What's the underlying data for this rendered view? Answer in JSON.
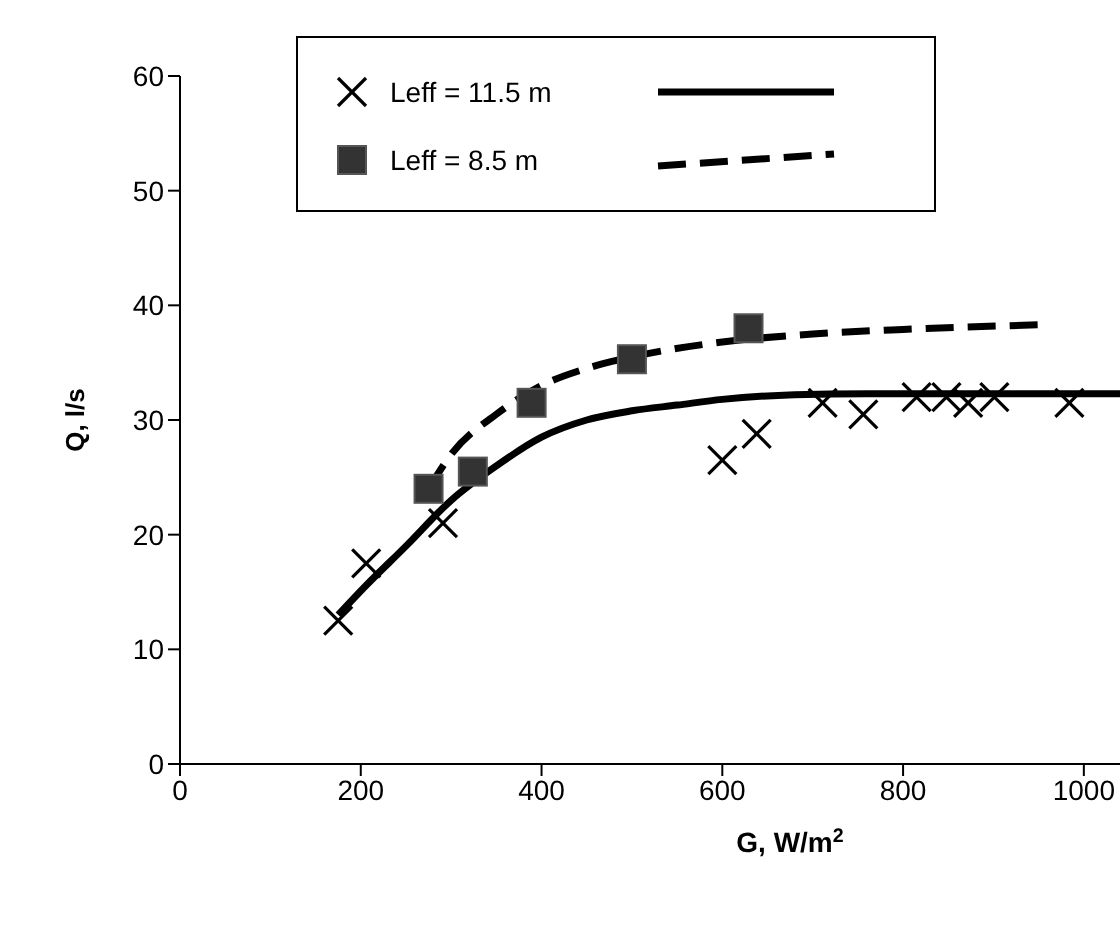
{
  "chart_data": {
    "type": "scatter",
    "xlabel": "G, W/m$^{2}$",
    "ylabel": "Q, l/s",
    "xlim": [
      0,
      1040
    ],
    "xticks": [
      0,
      200,
      400,
      600,
      800,
      1000
    ],
    "ylim": [
      0,
      60
    ],
    "yticks": [
      0,
      10,
      20,
      30,
      40,
      50,
      60
    ],
    "grid": false,
    "legend": "top",
    "series": [
      {
        "name": "Leff = 11.5 m",
        "type": "scatter",
        "marker": "cross",
        "color": "#000000",
        "x": [
          175,
          206,
          291,
          600,
          638,
          711,
          756,
          815,
          848,
          872,
          901,
          984
        ],
        "values": [
          12.5,
          17.5,
          21,
          26.5,
          28.8,
          31.5,
          30.5,
          32,
          32,
          31.5,
          32,
          31.5
        ]
      },
      {
        "type": "line",
        "line_style": "solid",
        "color": "#000000",
        "x": [
          175,
          205,
          250,
          300,
          350,
          400,
          450,
          500,
          550,
          600,
          680,
          760,
          860,
          1040
        ],
        "values": [
          13,
          15.5,
          19,
          23,
          26,
          28.5,
          30,
          30.8,
          31.3,
          31.8,
          32.2,
          32.3,
          32.3,
          32.3
        ]
      },
      {
        "name": "Leff = 8.5 m",
        "type": "scatter",
        "marker": "square",
        "color": "#333333",
        "x": [
          275,
          324,
          389,
          500,
          629
        ],
        "values": [
          24,
          25.5,
          31.5,
          35.3,
          38
        ]
      },
      {
        "type": "line",
        "line_style": "dashed",
        "color": "#000000",
        "x": [
          275,
          300,
          350,
          400,
          450,
          500,
          600,
          700,
          800,
          950
        ],
        "values": [
          24,
          27,
          30.5,
          33,
          34.5,
          35.5,
          36.8,
          37.5,
          37.9,
          38.3
        ]
      }
    ]
  }
}
